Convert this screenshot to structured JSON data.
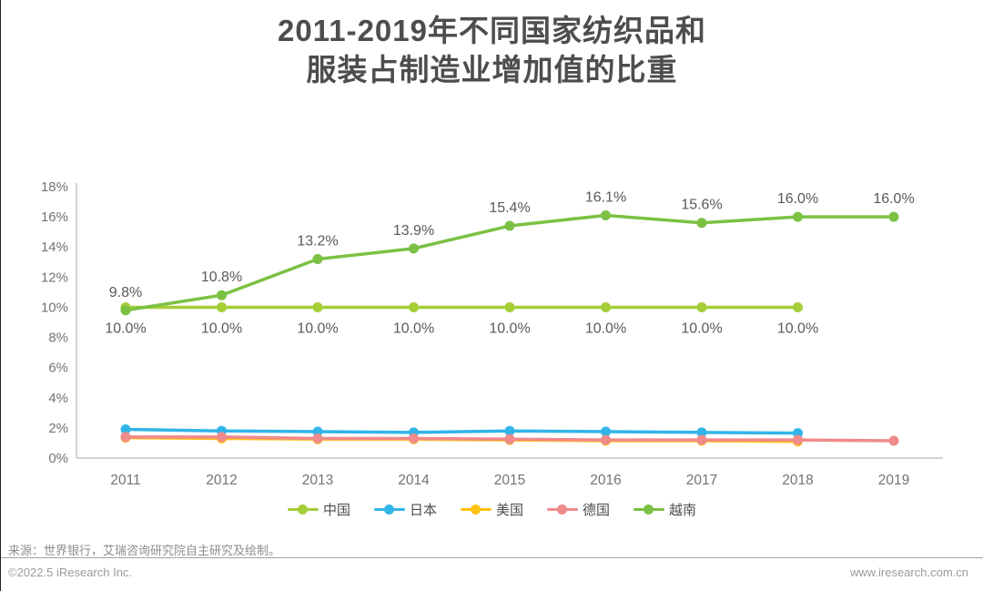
{
  "page": {
    "title_line1": "2011-2019年不同国家纺织品和",
    "title_line2": "服装占制造业增加值的比重",
    "source_note": "来源：世界银行，艾瑞咨询研究院自主研究及绘制。",
    "copyright": "©2022.5 iResearch Inc.",
    "website": "www.iresearch.com.cn"
  },
  "colors": {
    "china": "#a6ce38",
    "japan": "#31b5e8",
    "usa": "#fdc212",
    "germany": "#f18a8a",
    "vietnam": "#7bc143",
    "axis": "#c3c3c3",
    "tick_text": "#737373",
    "data_label_text": "#595959",
    "title_text": "#4d4d4d"
  },
  "chart_data": {
    "type": "line",
    "title": "2011-2019年不同国家纺织品和服装占制造业增加值的比重",
    "xlabel": "",
    "ylabel": "",
    "categories": [
      "2011",
      "2012",
      "2013",
      "2014",
      "2015",
      "2016",
      "2017",
      "2018",
      "2019"
    ],
    "ylim": [
      0,
      18
    ],
    "ytick_step": 2,
    "yticks": [
      "0%",
      "2%",
      "4%",
      "6%",
      "8%",
      "10%",
      "12%",
      "14%",
      "16%",
      "18%"
    ],
    "grid": false,
    "legend_position": "bottom",
    "series": [
      {
        "key": "china",
        "name": "中国",
        "values": [
          10.0,
          10.0,
          10.0,
          10.0,
          10.0,
          10.0,
          10.0,
          10.0,
          null
        ],
        "labels": [
          "10.0%",
          "10.0%",
          "10.0%",
          "10.0%",
          "10.0%",
          "10.0%",
          "10.0%",
          "10.0%",
          null
        ],
        "label_position": "below"
      },
      {
        "key": "japan",
        "name": "日本",
        "values": [
          1.9,
          1.8,
          1.75,
          1.7,
          1.8,
          1.75,
          1.7,
          1.65,
          null
        ]
      },
      {
        "key": "usa",
        "name": "美国",
        "values": [
          1.35,
          1.3,
          1.25,
          1.25,
          1.2,
          1.15,
          1.15,
          1.1,
          null
        ]
      },
      {
        "key": "germany",
        "name": "德国",
        "values": [
          1.4,
          1.4,
          1.3,
          1.3,
          1.25,
          1.2,
          1.2,
          1.2,
          1.15
        ]
      },
      {
        "key": "vietnam",
        "name": "越南",
        "values": [
          9.8,
          10.8,
          13.2,
          13.9,
          15.4,
          16.1,
          15.6,
          16.0,
          16.0
        ],
        "labels": [
          "9.8%",
          "10.8%",
          "13.2%",
          "13.9%",
          "15.4%",
          "16.1%",
          "15.6%",
          "16.0%",
          "16.0%"
        ],
        "label_position": "above"
      }
    ]
  }
}
